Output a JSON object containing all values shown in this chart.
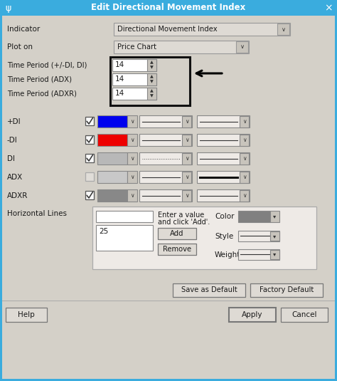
{
  "title": "Edit Directional Movement Index",
  "title_bar_color": "#3aacde",
  "bg_color": "#d4d0c8",
  "border_color": "#4aabdb",
  "white": "#ffffff",
  "indicator_label": "Indicator",
  "indicator_value": "Directional Movement Index",
  "ploton_label": "Plot on",
  "ploton_value": "Price Chart",
  "time_labels": [
    "Time Period (+/-DI, DI)",
    "Time Period (ADX)",
    "Time Period (ADXR)"
  ],
  "time_value": "14",
  "di_rows": [
    {
      "label": "+DI",
      "checked": true,
      "enabled": true,
      "color": "#0000ee",
      "style": "solid",
      "thick": false
    },
    {
      "label": "-DI",
      "checked": true,
      "enabled": true,
      "color": "#ee0000",
      "style": "solid",
      "thick": false
    },
    {
      "label": "DI",
      "checked": true,
      "enabled": true,
      "color": "#b8b8b8",
      "style": "dotted",
      "thick": false
    },
    {
      "label": "ADX",
      "checked": false,
      "enabled": false,
      "color": "#c8c8c8",
      "style": "solid",
      "thick": true
    },
    {
      "label": "ADXR",
      "checked": true,
      "enabled": true,
      "color": "#888888",
      "style": "solid",
      "thick": false
    }
  ],
  "hl_label": "Horizontal Lines",
  "hl_value": "25",
  "hl_color": "#808080",
  "btn_bottom": [
    "Save as Default",
    "Factory Default"
  ],
  "btn_footer": [
    "Help",
    "Apply",
    "Cancel"
  ]
}
